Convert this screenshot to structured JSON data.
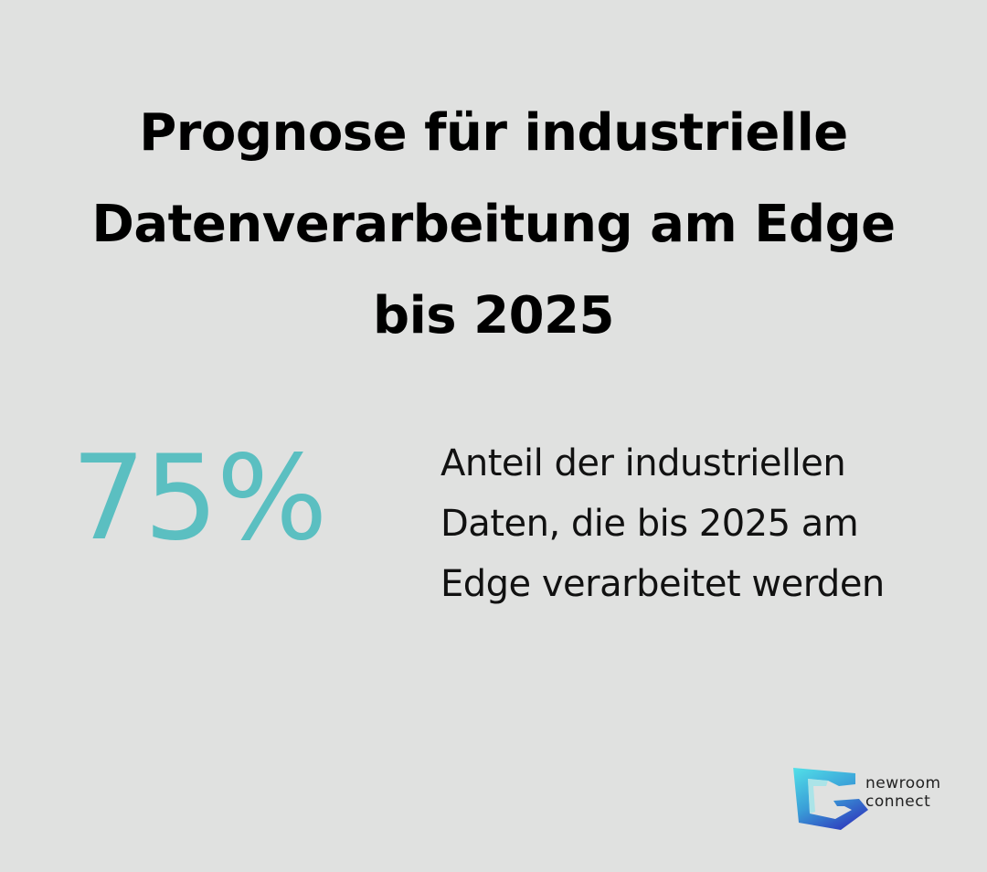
{
  "title": "Prognose für industrielle Datenverarbeitung am Edge bis 2025",
  "stat": {
    "value": "75%",
    "description": "Anteil der industriellen Daten, die bis 2025 am Edge verarbeitet werden"
  },
  "logo": {
    "line1": "newroom",
    "line2": "connect"
  },
  "colors": {
    "background": "#e0e1e0",
    "accent": "#5bbfc1",
    "logo_cyan": "#4fd6e0",
    "logo_blue": "#3552c4"
  }
}
